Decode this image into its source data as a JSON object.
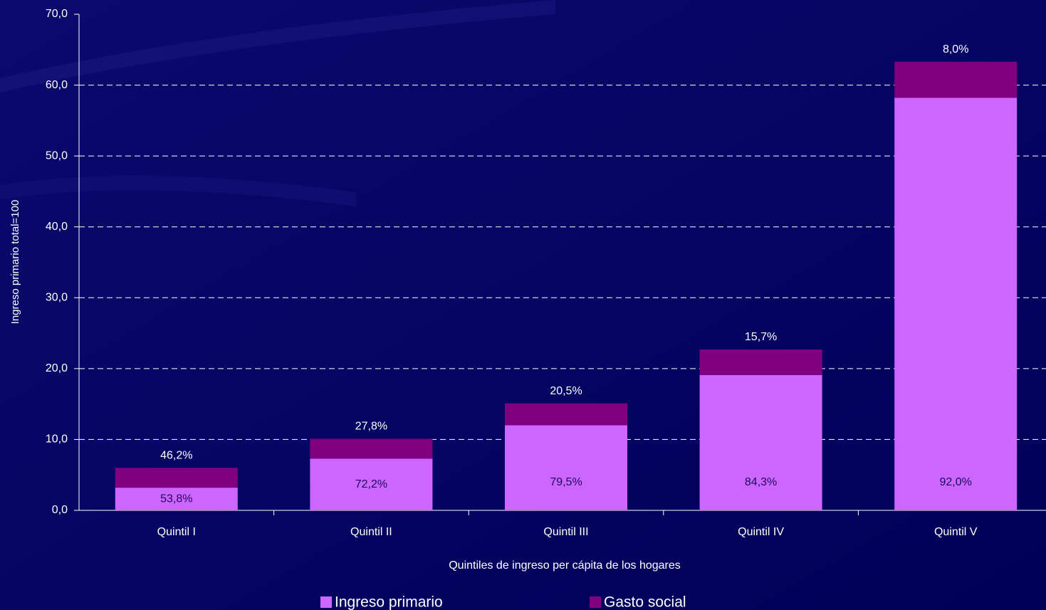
{
  "chart_data": {
    "type": "stacked_bar",
    "y_label": "Ingreso primario total=100",
    "x_label": "Quintiles de ingreso per cápita de los hogares",
    "categories": [
      "Quintil I",
      "Quintil II",
      "Quintil III",
      "Quintil IV",
      "Quintil V"
    ],
    "series": [
      {
        "name": "Ingreso primario",
        "color": "#cc66ff",
        "values": [
          3.2,
          7.3,
          12.0,
          19.1,
          58.2
        ],
        "shares": [
          53.8,
          72.2,
          79.5,
          84.3,
          92.0
        ],
        "share_labels": [
          "53,8%",
          "72,2%",
          "79,5%",
          "84,3%",
          "92,0%"
        ]
      },
      {
        "name": "Gasto social",
        "color": "#800080",
        "values": [
          2.8,
          2.8,
          3.1,
          3.6,
          5.1
        ],
        "shares": [
          46.2,
          27.8,
          20.5,
          15.7,
          8.0
        ],
        "share_labels": [
          "46,2%",
          "27,8%",
          "20,5%",
          "15,7%",
          "8,0%"
        ]
      }
    ],
    "ylim": [
      0,
      70
    ],
    "yticks": [
      {
        "value": 0,
        "label": "0,0"
      },
      {
        "value": 10,
        "label": "10,0"
      },
      {
        "value": 20,
        "label": "20,0"
      },
      {
        "value": 30,
        "label": "30,0"
      },
      {
        "value": 40,
        "label": "40,0"
      },
      {
        "value": 50,
        "label": "50,0"
      },
      {
        "value": 60,
        "label": "60,0"
      },
      {
        "value": 70,
        "label": "70,0"
      }
    ],
    "grid": true,
    "legend": "bottom"
  }
}
